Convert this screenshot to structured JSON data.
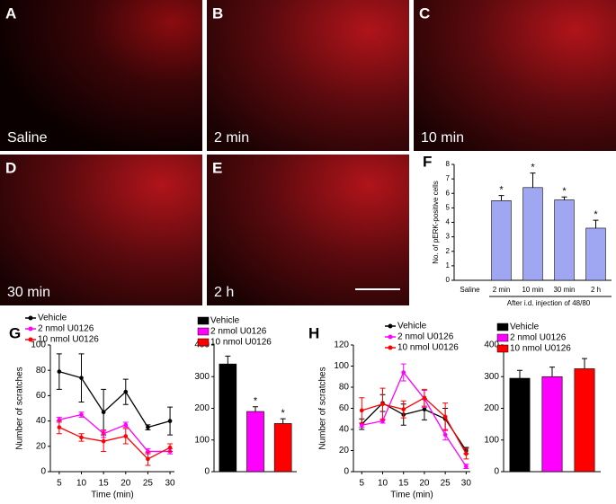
{
  "panels": [
    {
      "letter": "A",
      "caption": "Saline"
    },
    {
      "letter": "B",
      "caption": "2 min"
    },
    {
      "letter": "C",
      "caption": "10 min"
    },
    {
      "letter": "D",
      "caption": "30 min"
    },
    {
      "letter": "E",
      "caption": "2 h"
    }
  ],
  "chart_data": [
    {
      "type": "bar",
      "label": "F",
      "ylabel": "No. of pERK-positive cells",
      "xlabel": "After i.d. injection of 48/80",
      "categories": [
        "Saline",
        "2 min",
        "10 min",
        "30 min",
        "2 h"
      ],
      "values": [
        0,
        5.5,
        6.4,
        5.55,
        3.6
      ],
      "errors": [
        null,
        0.35,
        1.0,
        0.2,
        0.55
      ],
      "annotations": [
        null,
        "*",
        "*",
        "*",
        "*"
      ],
      "color": "#9fa6f2",
      "ylim": [
        0,
        8
      ],
      "yticks": [
        0,
        1,
        2,
        3,
        4,
        5,
        6,
        7,
        8
      ]
    },
    {
      "type": "line",
      "label": "G",
      "ylabel": "Number of scratches",
      "xlabel": "Time (min)",
      "x": [
        5,
        10,
        15,
        20,
        25,
        30
      ],
      "xlim": [
        3,
        31
      ],
      "xticks": [
        5,
        10,
        15,
        20,
        25,
        30
      ],
      "ylim": [
        0,
        100
      ],
      "yticks": [
        0,
        20,
        40,
        60,
        80,
        100
      ],
      "series": [
        {
          "name": "Vehicle",
          "color": "#000000",
          "values": [
            79,
            74,
            47,
            63,
            35,
            40
          ],
          "errors": [
            14,
            19,
            18,
            10,
            2,
            11
          ]
        },
        {
          "name": "2 nmol U0126",
          "color": "#ff00ff",
          "values": [
            41,
            45,
            30,
            37,
            16,
            16
          ],
          "errors": [
            2,
            2,
            3,
            2,
            2,
            2
          ]
        },
        {
          "name": "10 nmol U0126",
          "color": "#ff0000",
          "values": [
            35,
            27,
            24,
            28,
            10,
            19
          ],
          "errors": [
            5,
            3,
            8,
            6,
            5,
            3
          ]
        }
      ]
    },
    {
      "type": "bar",
      "ylim": [
        0,
        400
      ],
      "yticks": [
        0,
        100,
        200,
        300,
        400
      ],
      "annotations": [
        null,
        "*",
        "*"
      ],
      "series": [
        {
          "name": "Vehicle",
          "color": "#000000",
          "values": [
            340
          ],
          "errors": [
            25
          ]
        },
        {
          "name": "2 nmol U0126",
          "color": "#ff00ff",
          "values": [
            190
          ],
          "errors": [
            15
          ]
        },
        {
          "name": "10 nmol U0126",
          "color": "#ff0000",
          "values": [
            152
          ],
          "errors": [
            15
          ]
        }
      ]
    },
    {
      "type": "line",
      "label": "H",
      "ylabel": "Number of scratches",
      "xlabel": "Time (min)",
      "x": [
        5,
        10,
        15,
        20,
        25,
        30
      ],
      "xlim": [
        3,
        31
      ],
      "xticks": [
        5,
        10,
        15,
        20,
        25,
        30
      ],
      "ylim": [
        0,
        120
      ],
      "yticks": [
        0,
        20,
        40,
        60,
        80,
        100,
        120
      ],
      "series": [
        {
          "name": "Vehicle",
          "color": "#000000",
          "values": [
            45,
            65,
            54,
            59,
            50,
            20
          ],
          "errors": [
            5,
            8,
            10,
            10,
            10,
            3
          ]
        },
        {
          "name": "2 nmol U0126",
          "color": "#ff00ff",
          "values": [
            44,
            48,
            94,
            69,
            35,
            5
          ],
          "errors": [
            2,
            2,
            8,
            8,
            5,
            2
          ]
        },
        {
          "name": "10 nmol U0126",
          "color": "#ff0000",
          "values": [
            58,
            64,
            59,
            70,
            52,
            17
          ],
          "errors": [
            12,
            15,
            8,
            8,
            13,
            5
          ]
        }
      ]
    },
    {
      "type": "bar",
      "ylim": [
        0,
        400
      ],
      "yticks": [
        0,
        100,
        200,
        300,
        400
      ],
      "series": [
        {
          "name": "Vehicle",
          "color": "#000000",
          "values": [
            295
          ],
          "errors": [
            25
          ]
        },
        {
          "name": "2 nmol U0126",
          "color": "#ff00ff",
          "values": [
            300
          ],
          "errors": [
            30
          ]
        },
        {
          "name": "10 nmol U0126",
          "color": "#ff0000",
          "values": [
            325
          ],
          "errors": [
            32
          ]
        }
      ]
    }
  ]
}
